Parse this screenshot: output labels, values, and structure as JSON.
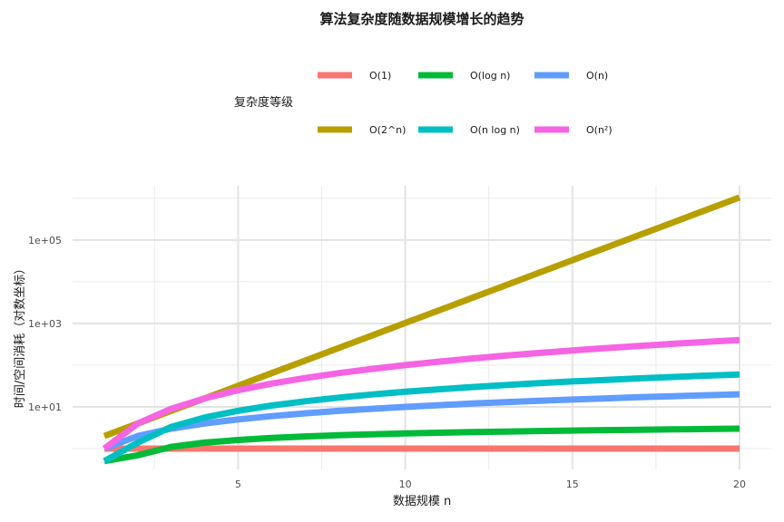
{
  "chart_data": {
    "type": "line",
    "title": "算法复杂度随数据规模增长的趋势",
    "xlabel": "数据规模 n",
    "ylabel": "时间/空间消耗（对数坐标）",
    "y_scale": "log10",
    "xlim": [
      0.05,
      20.95
    ],
    "ylim_log10": [
      -0.5,
      6.3
    ],
    "x_ticks": [
      5,
      10,
      15,
      20
    ],
    "x_tick_labels": [
      "5",
      "10",
      "15",
      "20"
    ],
    "y_ticks_log10": [
      1,
      3,
      5
    ],
    "y_tick_labels": [
      "1e+01",
      "1e+03",
      "1e+05"
    ],
    "grid": true,
    "legend": {
      "title": "复杂度等级",
      "placement": "top",
      "rows": [
        [
          "O(1)",
          "O(log n)",
          "O(n)"
        ],
        [
          "O(2^n)",
          "O(n log n)",
          "O(n²)"
        ]
      ]
    },
    "x": [
      1,
      2,
      3,
      4,
      5,
      6,
      7,
      8,
      9,
      10,
      11,
      12,
      13,
      14,
      15,
      16,
      17,
      18,
      19,
      20
    ],
    "series": [
      {
        "name": "O(1)",
        "color": "#F8766D",
        "values": [
          1,
          1,
          1,
          1,
          1,
          1,
          1,
          1,
          1,
          1,
          1,
          1,
          1,
          1,
          1,
          1,
          1,
          1,
          1,
          1
        ]
      },
      {
        "name": "O(log n)",
        "color": "#00BA38",
        "values": [
          0.5,
          0.69,
          1.1,
          1.39,
          1.61,
          1.79,
          1.95,
          2.08,
          2.2,
          2.3,
          2.4,
          2.48,
          2.56,
          2.64,
          2.71,
          2.77,
          2.83,
          2.89,
          2.94,
          3.0
        ]
      },
      {
        "name": "O(n)",
        "color": "#619CFF",
        "values": [
          1,
          2,
          3,
          4,
          5,
          6,
          7,
          8,
          9,
          10,
          11,
          12,
          13,
          14,
          15,
          16,
          17,
          18,
          19,
          20
        ]
      },
      {
        "name": "O(2^n)",
        "color": "#B79F00",
        "values": [
          2,
          4,
          8,
          16,
          32,
          64,
          128,
          256,
          512,
          1024,
          2048,
          4096,
          8192,
          16384,
          32768,
          65536,
          131072,
          262144,
          524288,
          1048576
        ]
      },
      {
        "name": "O(n log n)",
        "color": "#00BFC4",
        "values": [
          0.5,
          1.39,
          3.3,
          5.55,
          8.05,
          10.75,
          13.62,
          16.64,
          19.78,
          23.03,
          26.38,
          29.82,
          33.34,
          36.95,
          40.62,
          44.36,
          48.16,
          52.03,
          55.94,
          59.91
        ]
      },
      {
        "name": "O(n²)",
        "color": "#F564E3",
        "values": [
          1,
          4,
          9,
          16,
          25,
          36,
          49,
          64,
          81,
          100,
          121,
          144,
          169,
          196,
          225,
          256,
          289,
          324,
          361,
          400
        ]
      }
    ]
  }
}
